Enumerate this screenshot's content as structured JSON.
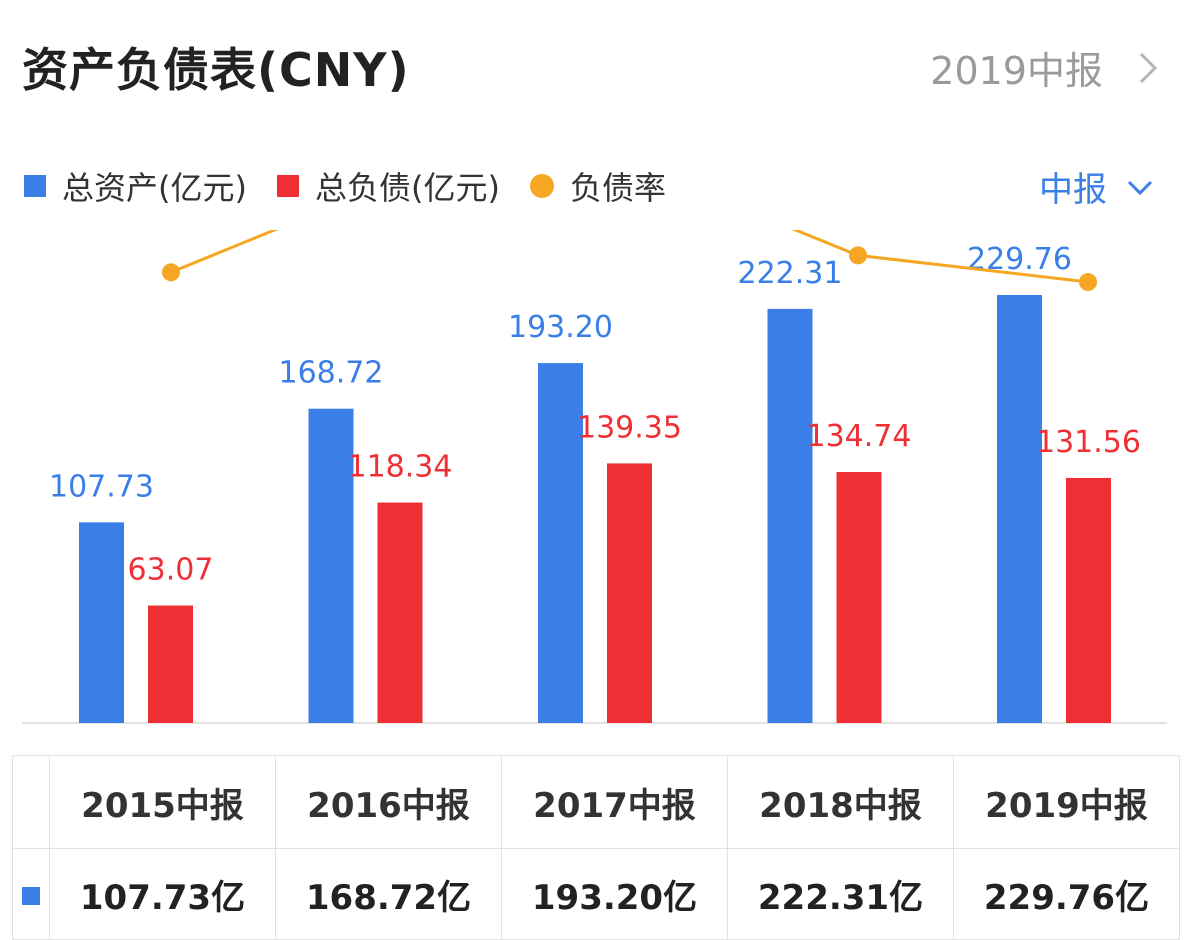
{
  "header": {
    "title": "资产负债表(CNY)",
    "period": "2019中报"
  },
  "legend": [
    {
      "label": "总资产(亿元)",
      "color": "#3a7fe8",
      "shape": "square"
    },
    {
      "label": "总负债(亿元)",
      "color": "#ee3035",
      "shape": "square"
    },
    {
      "label": "负债率",
      "color": "#f5a623",
      "shape": "dot"
    }
  ],
  "report_type": "中报",
  "colors": {
    "assets": "#3a7fe8",
    "liabilities": "#ee3035",
    "ratio": "#f5a623",
    "select": "#3a7fe8"
  },
  "icons": {
    "period_link": "chevron-right-icon",
    "report_select": "chevron-down-icon"
  },
  "chart_data": {
    "type": "bar",
    "categories": [
      "2015中报",
      "2016中报",
      "2017中报",
      "2018中报",
      "2019中报"
    ],
    "series": [
      {
        "name": "总资产(亿元)",
        "type": "bar",
        "values": [
          107.73,
          168.72,
          193.2,
          222.31,
          229.76
        ],
        "labels": [
          "107.73",
          "168.72",
          "193.20",
          "222.31",
          "229.76"
        ]
      },
      {
        "name": "总负债(亿元)",
        "type": "bar",
        "values": [
          63.07,
          118.34,
          139.35,
          134.74,
          131.56
        ],
        "labels": [
          "63.07",
          "118.34",
          "139.35",
          "134.74",
          "131.56"
        ]
      },
      {
        "name": "负债率",
        "type": "line",
        "values": [
          0.585,
          0.701,
          0.721,
          0.606,
          0.573
        ]
      }
    ],
    "ylim": [
      0,
      240
    ],
    "grid": false,
    "legend_position": "top-left"
  },
  "table": {
    "headers": [
      "2015中报",
      "2016中报",
      "2017中报",
      "2018中报",
      "2019中报"
    ],
    "values": [
      "107.73亿",
      "168.72亿",
      "193.20亿",
      "222.31亿",
      "229.76亿"
    ]
  }
}
